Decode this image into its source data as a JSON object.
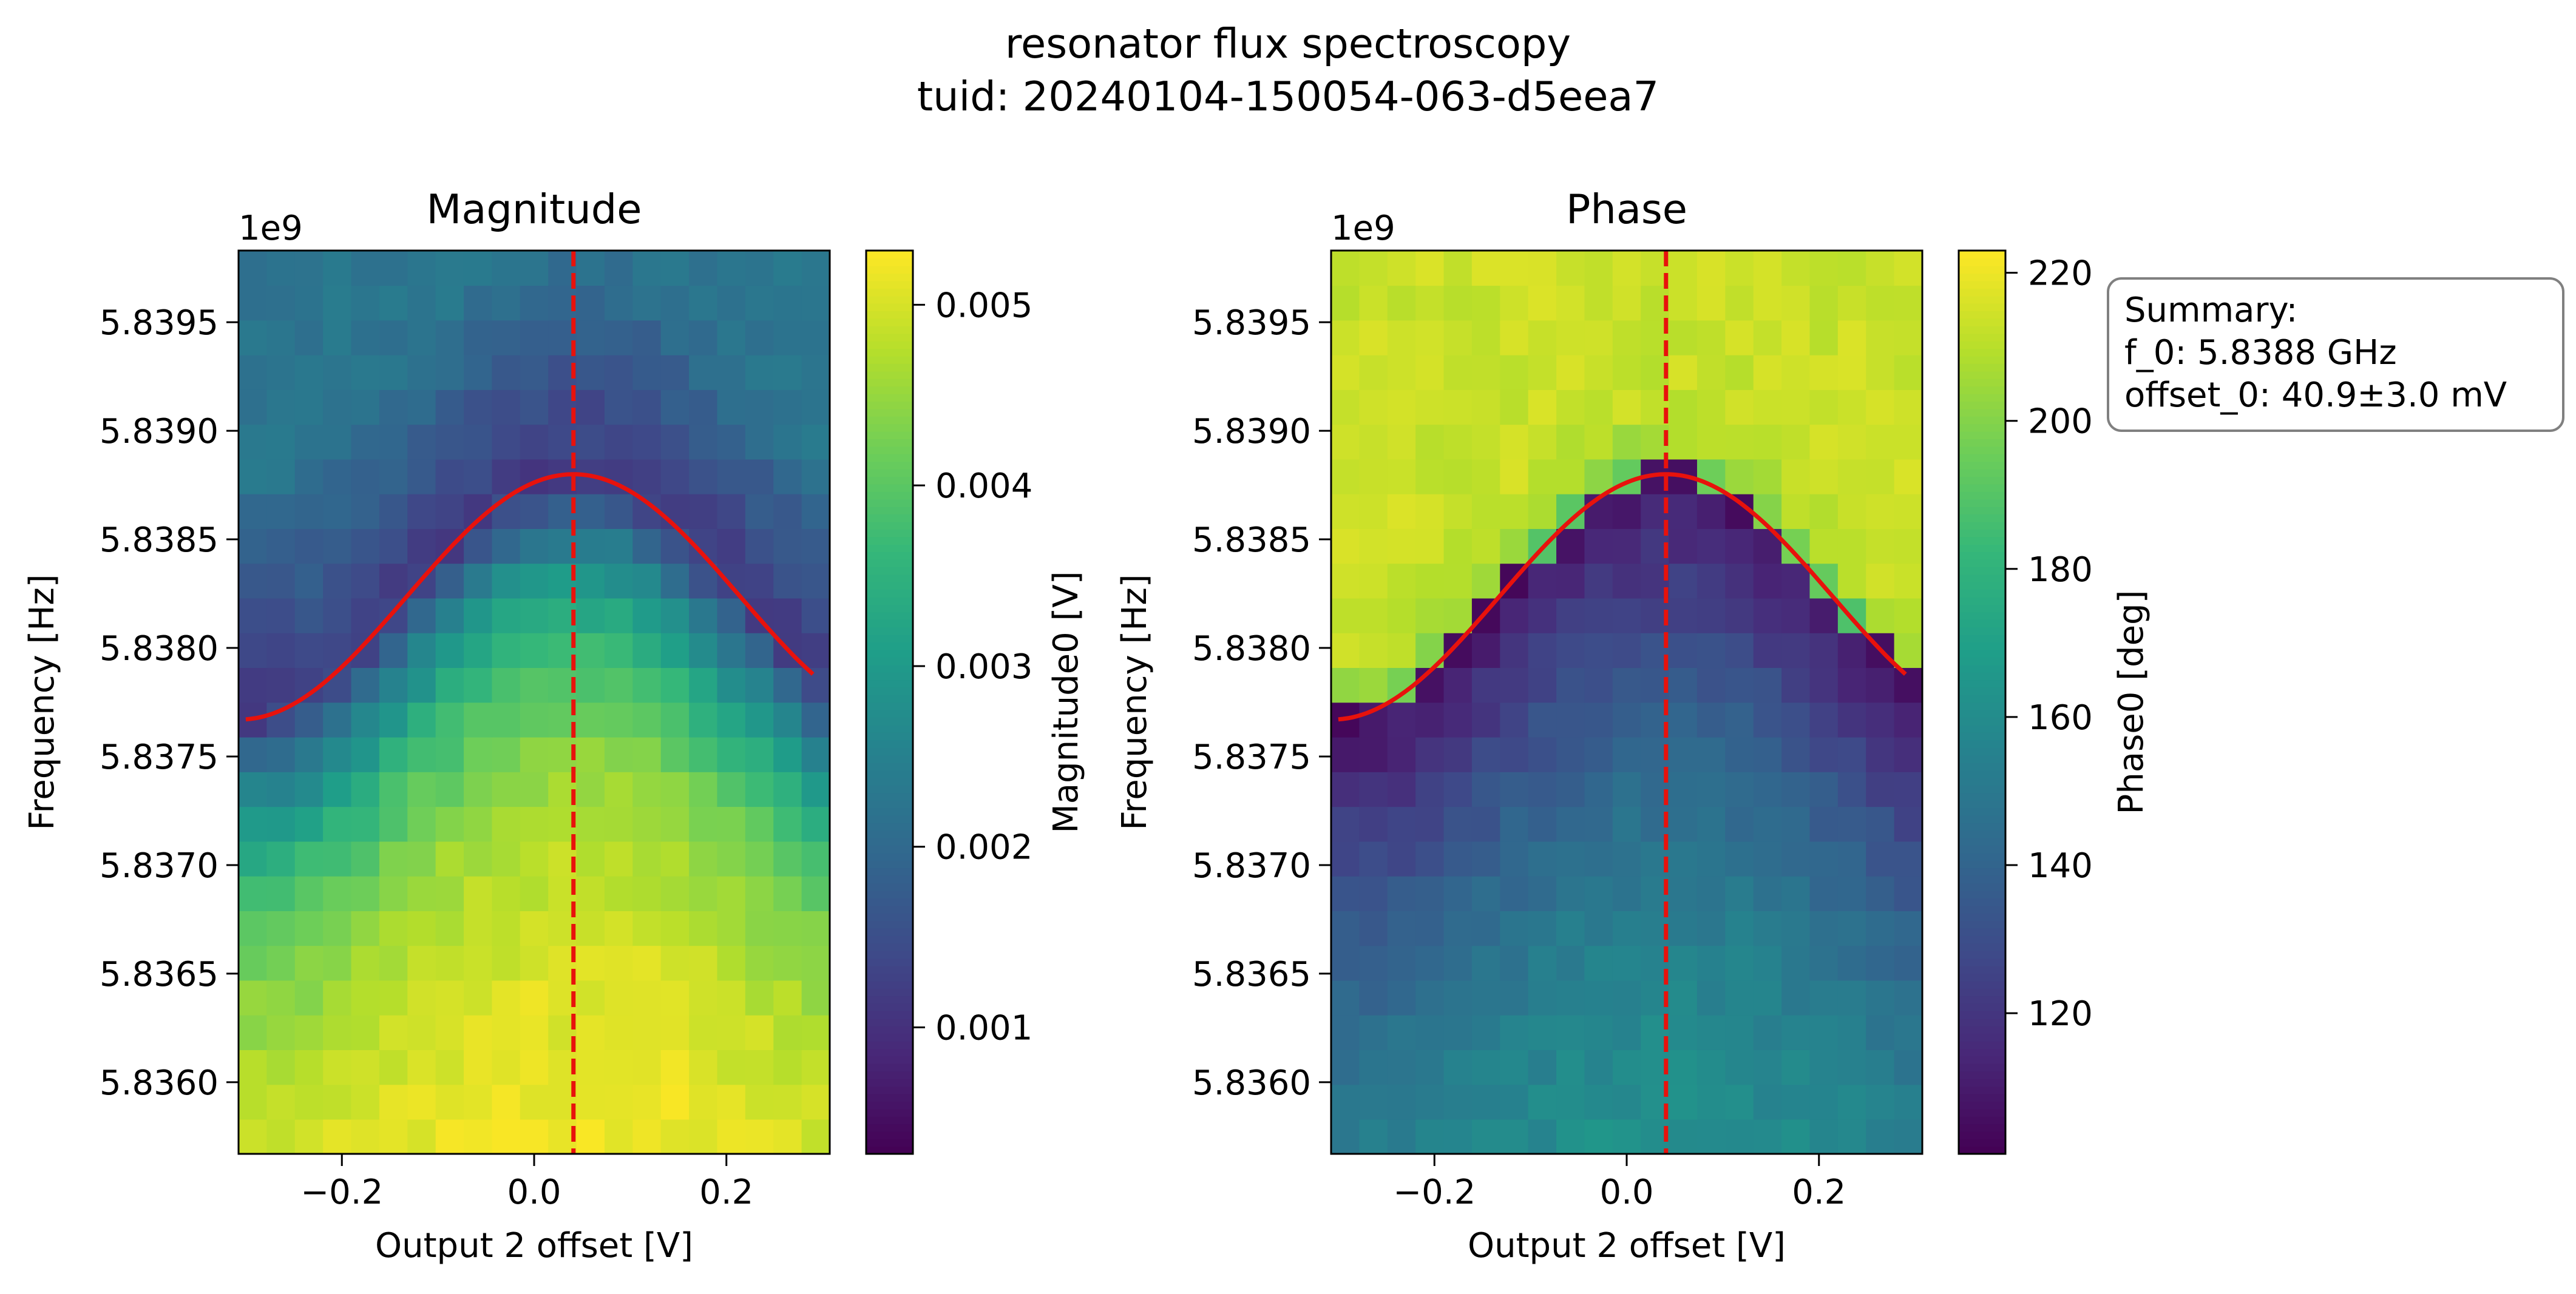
{
  "figure": {
    "suptitle_line1": "resonator flux spectroscopy",
    "suptitle_line2": "tuid: 20240104-150054-063-d5eea7"
  },
  "summary": {
    "line1": "Summary:",
    "line2": "f_0: 5.8388 GHz",
    "line3": "offset_0: 40.9±3.0 mV"
  },
  "chart_data": [
    {
      "type": "heatmap",
      "title": "Magnitude",
      "xlabel": "Output 2 offset [V]",
      "ylabel": "Frequency [Hz]",
      "y_multiplier": "1e9",
      "xlim": [
        -0.3075,
        0.3075
      ],
      "ylim": [
        5.83567,
        5.83983
      ],
      "x_ticks": [
        -0.2,
        0.0,
        0.2
      ],
      "x_tick_labels": [
        "−0.2",
        "0.0",
        "0.2"
      ],
      "y_ticks": [
        5.836,
        5.8365,
        5.837,
        5.8375,
        5.838,
        5.8385,
        5.839,
        5.8395
      ],
      "y_tick_labels": [
        "5.8360",
        "5.8365",
        "5.8370",
        "5.8375",
        "5.8380",
        "5.8385",
        "5.8390",
        "5.8395"
      ],
      "colormap": "viridis",
      "grid_cols": 21,
      "grid_rows": 26,
      "colorbar": {
        "label": "Magnitude0 [V]",
        "range": [
          0.0003,
          0.0053
        ],
        "ticks": [
          0.001,
          0.002,
          0.003,
          0.004,
          0.005
        ],
        "tick_labels": [
          "0.001",
          "0.002",
          "0.003",
          "0.004",
          "0.005"
        ]
      },
      "fit_curve": {
        "color": "#e8120c",
        "f0": 5.8388,
        "offset0": 0.0409,
        "f_min": 5.83767,
        "x_start": -0.3,
        "x_end": 0.29
      },
      "vline": {
        "x": 0.0409,
        "color": "#e8120c",
        "style": "dashed"
      }
    },
    {
      "type": "heatmap",
      "title": "Phase",
      "xlabel": "Output 2 offset [V]",
      "ylabel": "Frequency [Hz]",
      "y_multiplier": "1e9",
      "xlim": [
        -0.3075,
        0.3075
      ],
      "ylim": [
        5.83567,
        5.83983
      ],
      "x_ticks": [
        -0.2,
        0.0,
        0.2
      ],
      "x_tick_labels": [
        "−0.2",
        "0.0",
        "0.2"
      ],
      "y_ticks": [
        5.836,
        5.8365,
        5.837,
        5.8375,
        5.838,
        5.8385,
        5.839,
        5.8395
      ],
      "y_tick_labels": [
        "5.8360",
        "5.8365",
        "5.8370",
        "5.8375",
        "5.8380",
        "5.8385",
        "5.8390",
        "5.8395"
      ],
      "colormap": "viridis",
      "grid_cols": 21,
      "grid_rows": 26,
      "colorbar": {
        "label": "Phase0 [deg]",
        "range": [
          101,
          223
        ],
        "ticks": [
          120,
          140,
          160,
          180,
          200,
          220
        ],
        "tick_labels": [
          "120",
          "140",
          "160",
          "180",
          "200",
          "220"
        ]
      },
      "fit_curve": {
        "color": "#e8120c",
        "f0": 5.8388,
        "offset0": 0.0409,
        "f_min": 5.83767,
        "x_start": -0.3,
        "x_end": 0.29
      },
      "vline": {
        "x": 0.0409,
        "color": "#e8120c",
        "style": "dashed"
      }
    }
  ]
}
